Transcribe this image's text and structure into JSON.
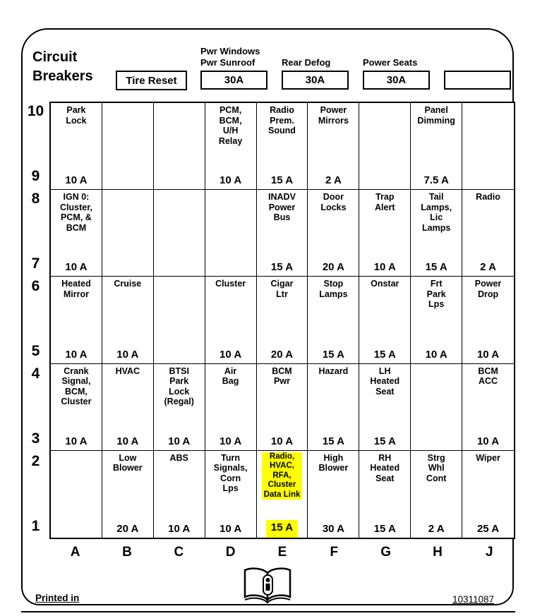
{
  "title_line1": "Circuit",
  "title_line2": "Breakers",
  "tire_reset_label": "Tire Reset",
  "top_breakers": [
    {
      "label_lines": [
        "Pwr Windows",
        "Pwr Sunroof"
      ],
      "value": "30A"
    },
    {
      "label_lines": [
        "Rear Defog"
      ],
      "value": "30A"
    },
    {
      "label_lines": [
        "Power Seats"
      ],
      "value": "30A"
    },
    {
      "label_lines": [],
      "value": ""
    }
  ],
  "fuse_grid": {
    "column_letters": [
      "A",
      "B",
      "C",
      "D",
      "E",
      "F",
      "G",
      "H",
      "J"
    ],
    "bands": [
      {
        "row_top": "10",
        "row_bottom": "9",
        "cells": [
          {
            "name": "Park\nLock",
            "amp": "10 A"
          },
          {
            "name": "",
            "amp": ""
          },
          {
            "name": "",
            "amp": ""
          },
          {
            "name": "PCM,\nBCM,\nU/H\nRelay",
            "amp": "10 A"
          },
          {
            "name": "Radio\nPrem.\nSound",
            "amp": "15 A"
          },
          {
            "name": "Power\nMirrors",
            "amp": "2 A"
          },
          {
            "name": "",
            "amp": ""
          },
          {
            "name": "Panel\nDimming",
            "amp": "7.5 A"
          },
          {
            "name": "",
            "amp": ""
          }
        ]
      },
      {
        "row_top": "8",
        "row_bottom": "7",
        "cells": [
          {
            "name": "IGN 0:\nCluster,\nPCM, &\nBCM",
            "amp": "10 A"
          },
          {
            "name": "",
            "amp": ""
          },
          {
            "name": "",
            "amp": ""
          },
          {
            "name": "",
            "amp": ""
          },
          {
            "name": "INADV\nPower\nBus",
            "amp": "15 A"
          },
          {
            "name": "Door\nLocks",
            "amp": "20 A"
          },
          {
            "name": "Trap\nAlert",
            "amp": "10 A"
          },
          {
            "name": "Tail\nLamps,\nLic\nLamps",
            "amp": "15 A"
          },
          {
            "name": "Radio",
            "amp": "2 A"
          }
        ]
      },
      {
        "row_top": "6",
        "row_bottom": "5",
        "cells": [
          {
            "name": "Heated\nMirror",
            "amp": "10 A"
          },
          {
            "name": "Cruise",
            "amp": "10 A"
          },
          {
            "name": "",
            "amp": ""
          },
          {
            "name": "Cluster",
            "amp": "10 A"
          },
          {
            "name": "Cigar\nLtr",
            "amp": "20 A"
          },
          {
            "name": "Stop\nLamps",
            "amp": "15 A"
          },
          {
            "name": "Onstar",
            "amp": "15 A"
          },
          {
            "name": "Frt\nPark\nLps",
            "amp": "10 A"
          },
          {
            "name": "Power\nDrop",
            "amp": "10 A"
          }
        ]
      },
      {
        "row_top": "4",
        "row_bottom": "3",
        "cells": [
          {
            "name": "Crank\nSignal,\nBCM,\nCluster",
            "amp": "10 A"
          },
          {
            "name": "HVAC",
            "amp": "10 A"
          },
          {
            "name": "BTSI\nPark\nLock\n(Regal)",
            "amp": "10 A"
          },
          {
            "name": "Air\nBag",
            "amp": "10 A"
          },
          {
            "name": "BCM\nPwr",
            "amp": "10 A"
          },
          {
            "name": "Hazard",
            "amp": "15 A"
          },
          {
            "name": "LH\nHeated\nSeat",
            "amp": "15 A"
          },
          {
            "name": "",
            "amp": ""
          },
          {
            "name": "BCM\nACC",
            "amp": "10 A"
          }
        ]
      },
      {
        "row_top": "2",
        "row_bottom": "1",
        "cells": [
          {
            "name": "",
            "amp": ""
          },
          {
            "name": "Low\nBlower",
            "amp": "20 A"
          },
          {
            "name": "ABS",
            "amp": "10 A"
          },
          {
            "name": "Turn\nSignals,\nCorn\nLps",
            "amp": "10 A"
          },
          {
            "name": "Radio,\nHVAC,\nRFA,\nCluster\nData Link",
            "amp": "15 A",
            "highlight": true
          },
          {
            "name": "High\nBlower",
            "amp": "30 A"
          },
          {
            "name": "RH\nHeated\nSeat",
            "amp": "15 A"
          },
          {
            "name": "Strg\nWhl\nCont",
            "amp": "2 A"
          },
          {
            "name": "Wiper",
            "amp": "25 A"
          }
        ]
      }
    ]
  },
  "footer": {
    "printed_in": "Printed in",
    "doc_number": "10311087"
  },
  "icons": {
    "book_icon": "open-book-info-icon"
  },
  "colors": {
    "highlight": "#ffff00",
    "line": "#000000"
  }
}
